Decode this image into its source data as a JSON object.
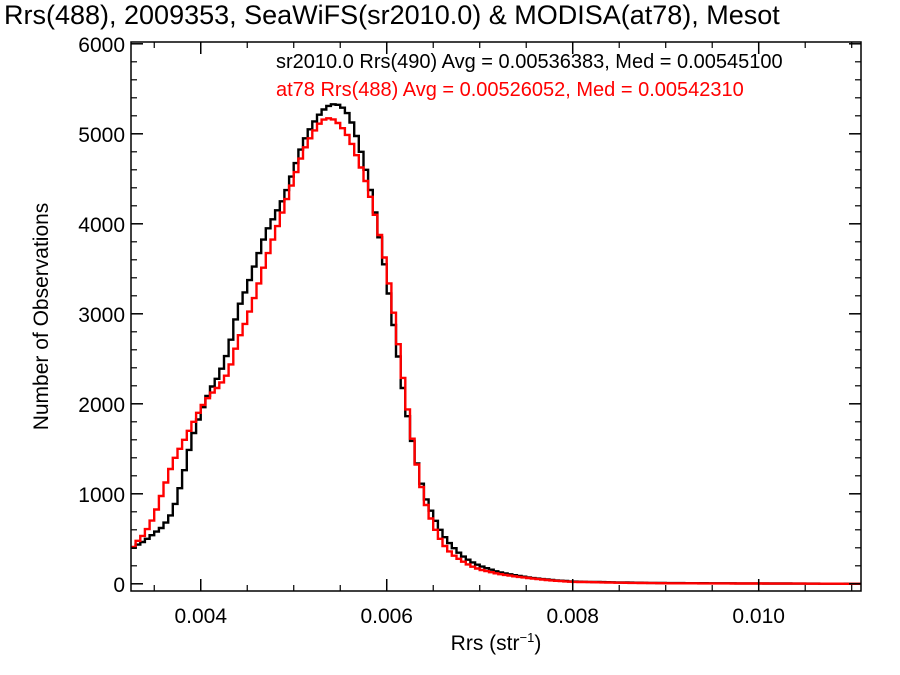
{
  "chart_data": {
    "type": "histogram",
    "title": "Rrs(488), 2009353, SeaWiFS(sr2010.0) & MODISA(at78), Mesot",
    "xlabel_main": "Rrs (str",
    "xlabel_sup": "−1",
    "xlabel_end": ")",
    "ylabel": "Number of Observations",
    "xlim": [
      0.00325,
      0.0111
    ],
    "ylim": [
      -80,
      6020
    ],
    "x_ticks": [
      0.004,
      0.006,
      0.008,
      0.01
    ],
    "x_tick_labels": [
      "0.004",
      "0.006",
      "0.008",
      "0.010"
    ],
    "y_ticks": [
      0,
      1000,
      2000,
      3000,
      4000,
      5000,
      6000
    ],
    "y_tick_labels": [
      "0",
      "1000",
      "2000",
      "3000",
      "4000",
      "5000",
      "6000"
    ],
    "bin_width": 5e-05,
    "series": [
      {
        "name": "sr2010.0 Rrs(490)",
        "legend": "sr2010.0 Rrs(490) Avg = 0.00536383, Med = 0.00545100",
        "color": "#000000",
        "points": [
          [
            0.00325,
            380
          ],
          [
            0.0033,
            420
          ],
          [
            0.0034,
            480
          ],
          [
            0.0035,
            560
          ],
          [
            0.0036,
            640
          ],
          [
            0.0037,
            800
          ],
          [
            0.0038,
            1150
          ],
          [
            0.0039,
            1600
          ],
          [
            0.004,
            1900
          ],
          [
            0.0041,
            2150
          ],
          [
            0.0042,
            2320
          ],
          [
            0.0043,
            2600
          ],
          [
            0.0044,
            3050
          ],
          [
            0.0045,
            3300
          ],
          [
            0.0046,
            3600
          ],
          [
            0.0047,
            3900
          ],
          [
            0.0048,
            4100
          ],
          [
            0.0049,
            4300
          ],
          [
            0.005,
            4600
          ],
          [
            0.0051,
            4900
          ],
          [
            0.0052,
            5100
          ],
          [
            0.0053,
            5250
          ],
          [
            0.0054,
            5330
          ],
          [
            0.0055,
            5320
          ],
          [
            0.0056,
            5200
          ],
          [
            0.0057,
            4900
          ],
          [
            0.0058,
            4500
          ],
          [
            0.0059,
            4000
          ],
          [
            0.006,
            3400
          ],
          [
            0.0061,
            2700
          ],
          [
            0.0062,
            2000
          ],
          [
            0.0063,
            1450
          ],
          [
            0.0064,
            1000
          ],
          [
            0.0065,
            750
          ],
          [
            0.0066,
            550
          ],
          [
            0.0067,
            420
          ],
          [
            0.0068,
            320
          ],
          [
            0.0069,
            250
          ],
          [
            0.007,
            200
          ],
          [
            0.0072,
            130
          ],
          [
            0.0074,
            90
          ],
          [
            0.0076,
            60
          ],
          [
            0.0078,
            40
          ],
          [
            0.008,
            25
          ],
          [
            0.0085,
            15
          ],
          [
            0.009,
            8
          ],
          [
            0.01,
            4
          ],
          [
            0.0111,
            0
          ]
        ]
      },
      {
        "name": "at78 Rrs(488)",
        "legend": "at78 Rrs(488) Avg = 0.00526052, Med = 0.00542310",
        "color": "#ff0000",
        "points": [
          [
            0.00325,
            370
          ],
          [
            0.0033,
            450
          ],
          [
            0.0034,
            560
          ],
          [
            0.0035,
            750
          ],
          [
            0.0036,
            1050
          ],
          [
            0.0037,
            1350
          ],
          [
            0.0038,
            1550
          ],
          [
            0.0039,
            1750
          ],
          [
            0.004,
            1950
          ],
          [
            0.0041,
            2100
          ],
          [
            0.0042,
            2200
          ],
          [
            0.0043,
            2350
          ],
          [
            0.0044,
            2700
          ],
          [
            0.0045,
            2950
          ],
          [
            0.0046,
            3250
          ],
          [
            0.0047,
            3600
          ],
          [
            0.0048,
            3900
          ],
          [
            0.0049,
            4200
          ],
          [
            0.005,
            4500
          ],
          [
            0.0051,
            4800
          ],
          [
            0.0052,
            5000
          ],
          [
            0.0053,
            5150
          ],
          [
            0.0054,
            5180
          ],
          [
            0.0055,
            5100
          ],
          [
            0.0056,
            4950
          ],
          [
            0.0057,
            4700
          ],
          [
            0.0058,
            4400
          ],
          [
            0.0059,
            4000
          ],
          [
            0.006,
            3500
          ],
          [
            0.0061,
            2850
          ],
          [
            0.0062,
            2100
          ],
          [
            0.0063,
            1450
          ],
          [
            0.0064,
            950
          ],
          [
            0.0065,
            650
          ],
          [
            0.0066,
            450
          ],
          [
            0.0067,
            330
          ],
          [
            0.0068,
            260
          ],
          [
            0.0069,
            200
          ],
          [
            0.007,
            160
          ],
          [
            0.0072,
            110
          ],
          [
            0.0074,
            80
          ],
          [
            0.0076,
            55
          ],
          [
            0.0078,
            35
          ],
          [
            0.008,
            22
          ],
          [
            0.0085,
            12
          ],
          [
            0.009,
            6
          ],
          [
            0.01,
            3
          ],
          [
            0.0111,
            0
          ]
        ]
      }
    ],
    "grid": false,
    "legend_placement": "top-right"
  }
}
